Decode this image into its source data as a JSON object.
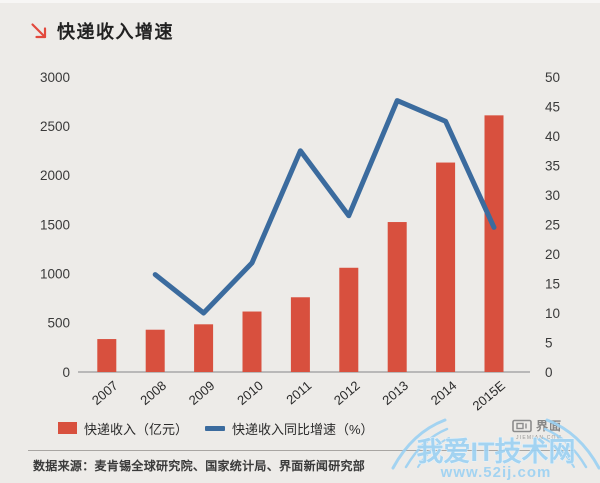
{
  "header": {
    "title": "快递收入增速"
  },
  "colors": {
    "background": "#edebe8",
    "bar": "#d8503e",
    "line": "#3b6b9e",
    "arrow": "#e2493d",
    "axis": "#9a9a9a",
    "watermark_blue": "#9bd1f3",
    "jiemian_gray": "#8c8c8c"
  },
  "chart_data": {
    "type": "bar",
    "subtype": "combo-bar-line-dual-axis",
    "title": "快递收入增速",
    "categories": [
      "2007",
      "2008",
      "2009",
      "2010",
      "2011",
      "2012",
      "2013",
      "2014",
      "2015E"
    ],
    "series": [
      {
        "name": "快递收入（亿元）",
        "type": "bar",
        "axis": "left",
        "color": "#d8503e",
        "values": [
          335,
          430,
          485,
          615,
          760,
          1060,
          1525,
          2130,
          2610
        ]
      },
      {
        "name": "快递收入同比增速（%）",
        "type": "line",
        "axis": "right",
        "color": "#3b6b9e",
        "values": [
          null,
          16.5,
          10,
          18.5,
          37.5,
          26.5,
          46,
          42.5,
          24.5
        ]
      }
    ],
    "left_axis": {
      "min": 0,
      "max": 3000,
      "step": 500,
      "ticks": [
        0,
        500,
        1000,
        1500,
        2000,
        2500,
        3000
      ]
    },
    "right_axis": {
      "min": 0,
      "max": 50,
      "step": 5,
      "ticks": [
        0,
        5,
        10,
        15,
        20,
        25,
        30,
        35,
        40,
        45,
        50
      ]
    },
    "grid": false,
    "legend_position": "bottom"
  },
  "footer": {
    "source": "数据来源：麦肯锡全球研究院、国家统计局、界面新闻研究部"
  },
  "watermarks": {
    "jiemian": {
      "logo_text": "界面",
      "caption": "JIEMIAN.COM"
    },
    "ij52": {
      "site_name": "我爱IT技术网",
      "url": "www.52ij.com"
    }
  }
}
